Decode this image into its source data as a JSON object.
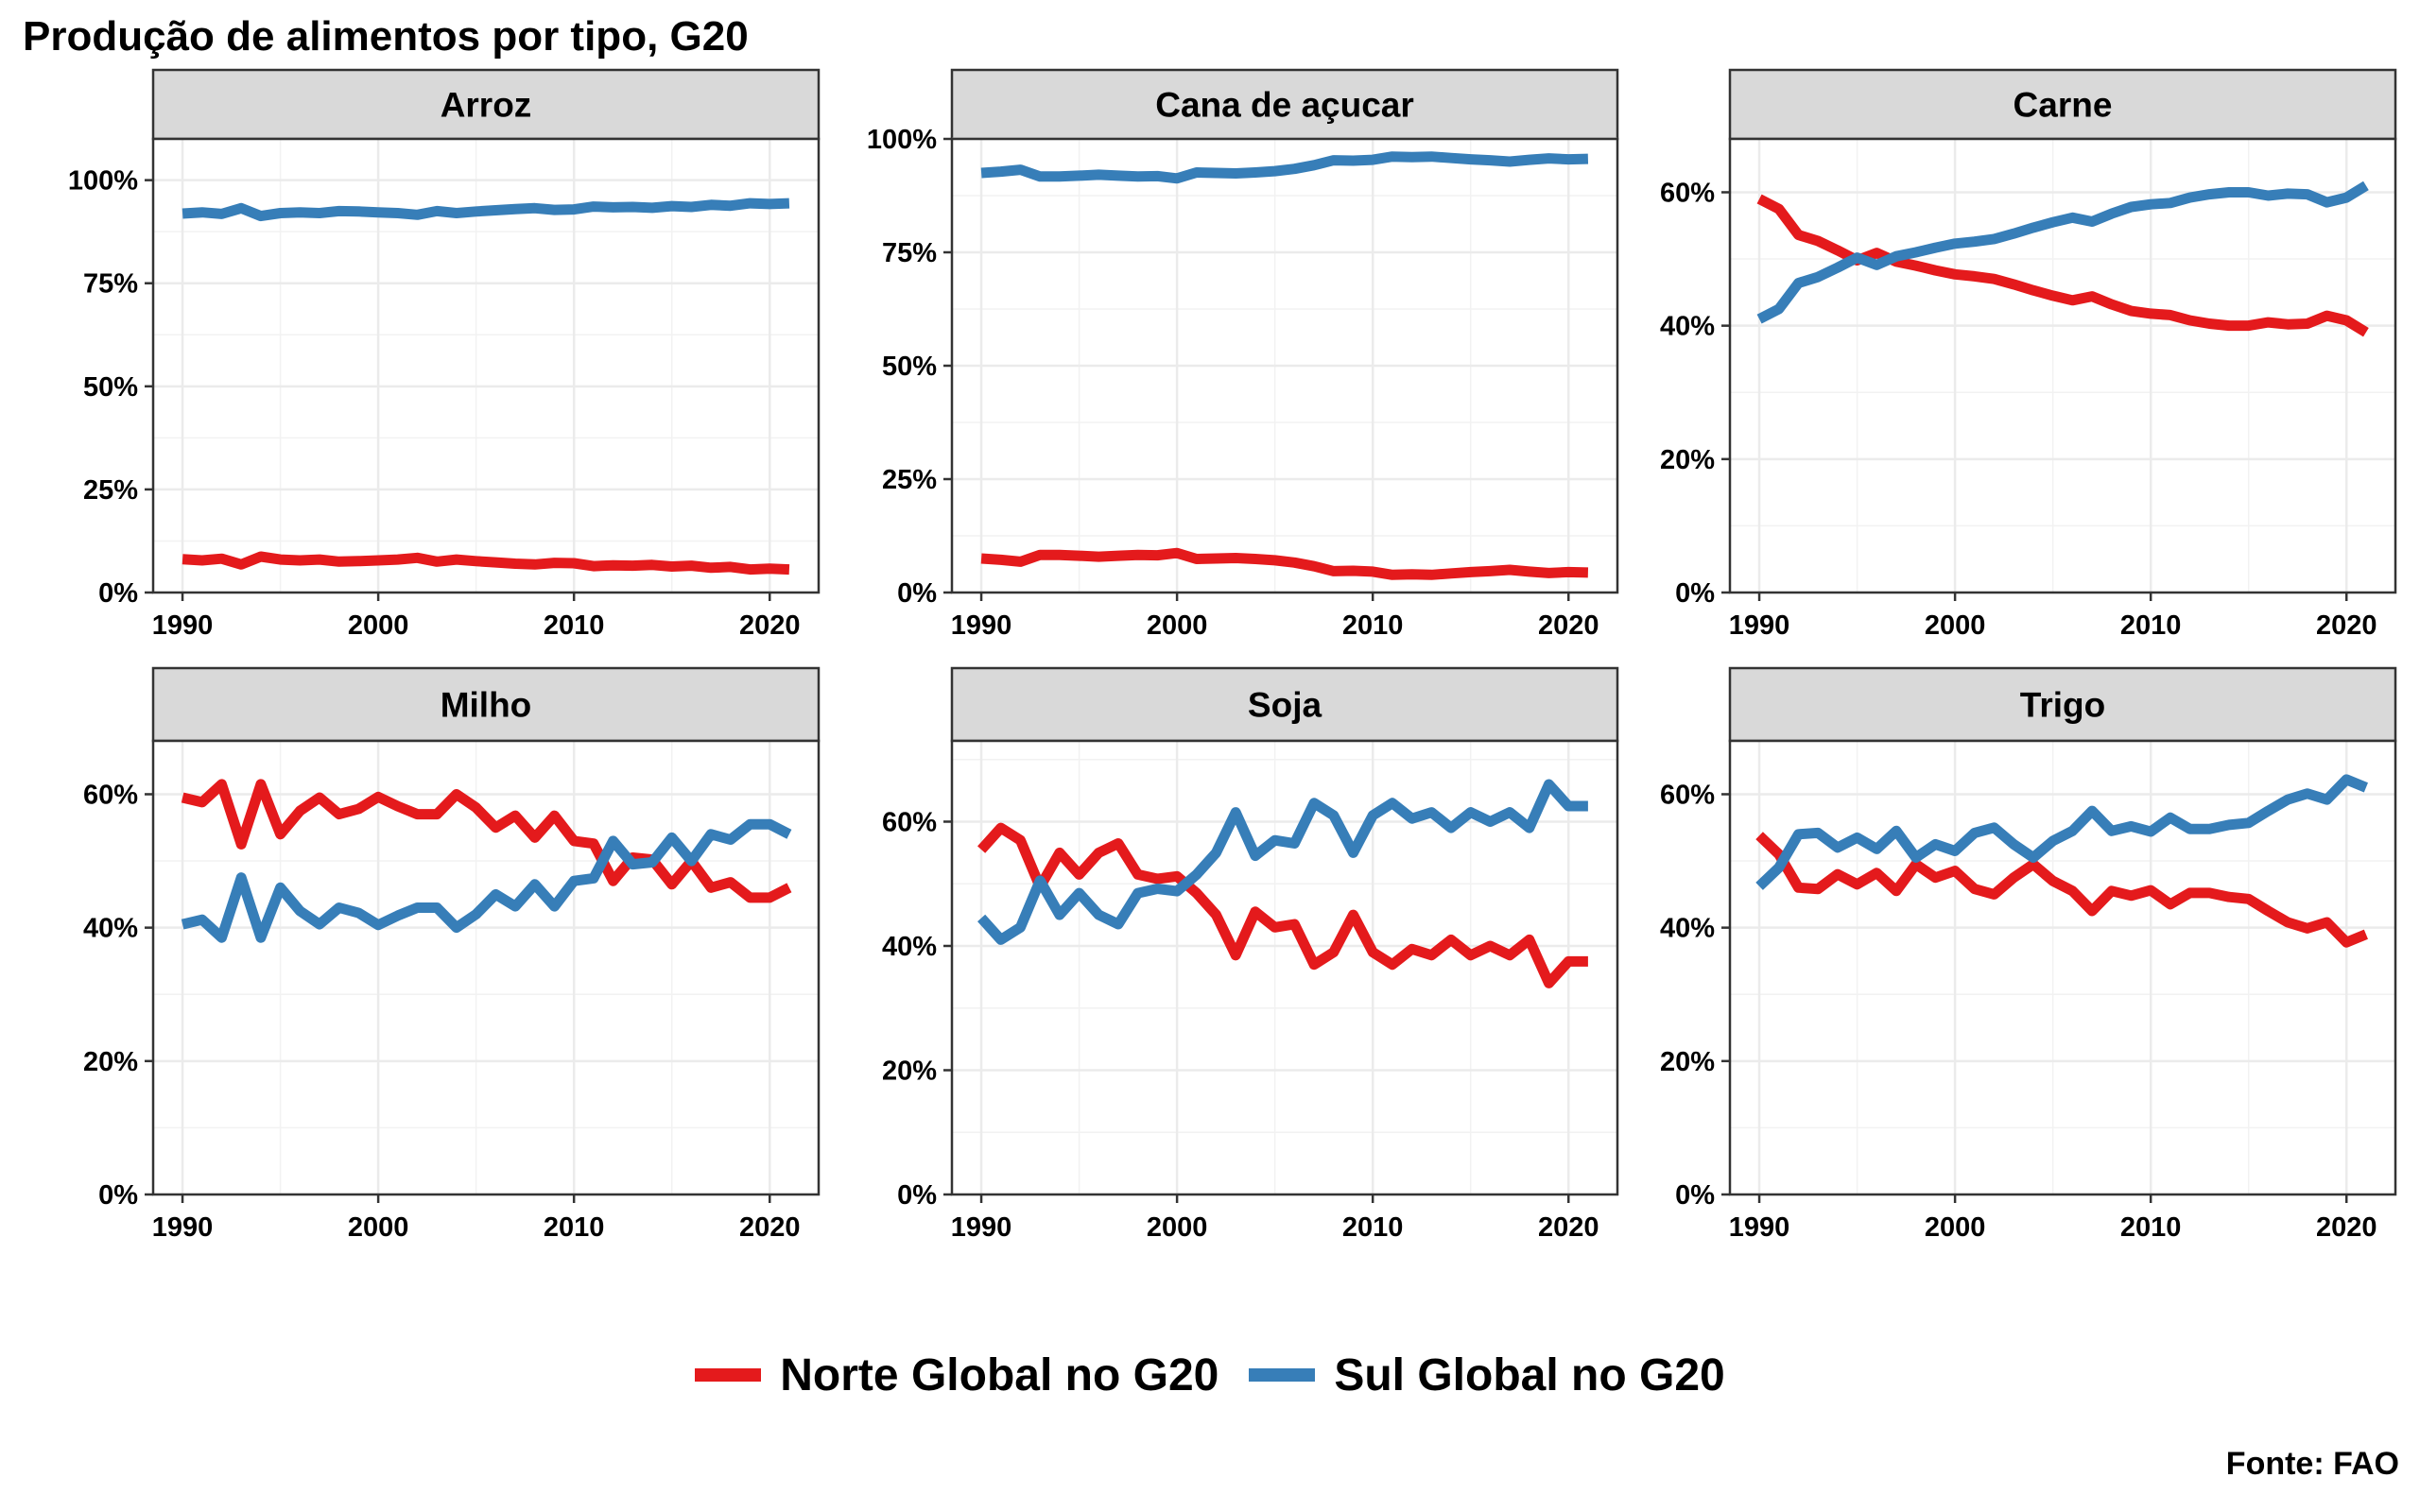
{
  "title": "Produção de alimentos por tipo, G20",
  "source": "Fonte: FAO",
  "colors": {
    "norte": "#e41a1c",
    "sul": "#377eb8",
    "strip_bg": "#d9d9d9",
    "grid": "#ebebeb"
  },
  "legend": [
    {
      "name": "Norte Global no G20",
      "color": "#e41a1c"
    },
    {
      "name": "Sul Global no G20",
      "color": "#377eb8"
    }
  ],
  "chart_data": [
    {
      "type": "line",
      "title": "Arroz",
      "ylim": [
        0,
        110
      ],
      "yticks": [
        0,
        25,
        50,
        75,
        100
      ],
      "ytick_labels": [
        "0%",
        "25%",
        "50%",
        "75%",
        "100%"
      ],
      "xlim": [
        1988.5,
        2022.5
      ],
      "xticks": [
        1990,
        2000,
        2010,
        2020
      ],
      "x": [
        1990,
        1991,
        1992,
        1993,
        1994,
        1995,
        1996,
        1997,
        1998,
        1999,
        2000,
        2001,
        2002,
        2003,
        2004,
        2005,
        2006,
        2007,
        2008,
        2009,
        2010,
        2011,
        2012,
        2013,
        2014,
        2015,
        2016,
        2017,
        2018,
        2019,
        2020,
        2021
      ],
      "series": [
        {
          "name": "Norte Global no G20",
          "values": [
            8.1,
            7.8,
            8.2,
            6.8,
            8.7,
            8.0,
            7.8,
            8.0,
            7.5,
            7.6,
            7.8,
            8.0,
            8.4,
            7.5,
            8.0,
            7.6,
            7.3,
            7.0,
            6.8,
            7.2,
            7.1,
            6.4,
            6.6,
            6.5,
            6.7,
            6.3,
            6.5,
            6.0,
            6.2,
            5.6,
            5.8,
            5.6
          ]
        },
        {
          "name": "Sul Global no G20",
          "values": [
            91.9,
            92.2,
            91.8,
            93.2,
            91.3,
            92.0,
            92.2,
            92.0,
            92.5,
            92.4,
            92.2,
            92.0,
            91.6,
            92.5,
            92.0,
            92.4,
            92.7,
            93.0,
            93.2,
            92.8,
            92.9,
            93.6,
            93.4,
            93.5,
            93.3,
            93.7,
            93.5,
            94.0,
            93.8,
            94.4,
            94.2,
            94.4
          ]
        }
      ]
    },
    {
      "type": "line",
      "title": "Cana de açucar",
      "ylim": [
        0,
        100
      ],
      "yticks": [
        0,
        25,
        50,
        75,
        100
      ],
      "ytick_labels": [
        "0%",
        "25%",
        "50%",
        "75%",
        "100%"
      ],
      "xlim": [
        1988.5,
        2022.5
      ],
      "xticks": [
        1990,
        2000,
        2010,
        2020
      ],
      "x": [
        1990,
        1991,
        1992,
        1993,
        1994,
        1995,
        1996,
        1997,
        1998,
        1999,
        2000,
        2001,
        2002,
        2003,
        2004,
        2005,
        2006,
        2007,
        2008,
        2009,
        2010,
        2011,
        2012,
        2013,
        2014,
        2015,
        2016,
        2017,
        2018,
        2019,
        2020,
        2021
      ],
      "series": [
        {
          "name": "Norte Global no G20",
          "values": [
            7.5,
            7.2,
            6.8,
            8.3,
            8.3,
            8.1,
            7.9,
            8.1,
            8.3,
            8.2,
            8.7,
            7.4,
            7.5,
            7.6,
            7.4,
            7.1,
            6.6,
            5.8,
            4.7,
            4.8,
            4.6,
            3.9,
            4.0,
            3.9,
            4.2,
            4.5,
            4.7,
            5.0,
            4.6,
            4.3,
            4.5,
            4.4
          ]
        },
        {
          "name": "Sul Global no G20",
          "values": [
            92.5,
            92.8,
            93.2,
            91.7,
            91.7,
            91.9,
            92.1,
            91.9,
            91.7,
            91.8,
            91.3,
            92.6,
            92.5,
            92.4,
            92.6,
            92.9,
            93.4,
            94.2,
            95.3,
            95.2,
            95.4,
            96.1,
            96.0,
            96.1,
            95.8,
            95.5,
            95.3,
            95.0,
            95.4,
            95.7,
            95.5,
            95.6
          ]
        }
      ]
    },
    {
      "type": "line",
      "title": "Carne",
      "ylim": [
        0,
        68
      ],
      "yticks": [
        0,
        20,
        40,
        60
      ],
      "ytick_labels": [
        "0%",
        "20%",
        "40%",
        "60%"
      ],
      "xlim": [
        1988.5,
        2022.5
      ],
      "xticks": [
        1990,
        2000,
        2010,
        2020
      ],
      "x": [
        1990,
        1991,
        1992,
        1993,
        1994,
        1995,
        1996,
        1997,
        1998,
        1999,
        2000,
        2001,
        2002,
        2003,
        2004,
        2005,
        2006,
        2007,
        2008,
        2009,
        2010,
        2011,
        2012,
        2013,
        2014,
        2015,
        2016,
        2017,
        2018,
        2019,
        2020,
        2021
      ],
      "series": [
        {
          "name": "Norte Global no G20",
          "values": [
            59.0,
            57.5,
            53.6,
            52.7,
            51.3,
            49.8,
            50.9,
            49.6,
            49.0,
            48.3,
            47.7,
            47.4,
            47.0,
            46.2,
            45.3,
            44.5,
            43.8,
            44.4,
            43.2,
            42.2,
            41.8,
            41.6,
            40.8,
            40.3,
            40.0,
            40.0,
            40.5,
            40.2,
            40.3,
            41.5,
            40.8,
            39.0
          ]
        },
        {
          "name": "Sul Global no G20",
          "values": [
            41.0,
            42.5,
            46.4,
            47.3,
            48.7,
            50.2,
            49.1,
            50.4,
            51.0,
            51.7,
            52.3,
            52.6,
            53.0,
            53.8,
            54.7,
            55.5,
            56.2,
            55.6,
            56.8,
            57.8,
            58.2,
            58.4,
            59.2,
            59.7,
            60.0,
            60.0,
            59.5,
            59.8,
            59.7,
            58.5,
            59.2,
            61.0
          ]
        }
      ]
    },
    {
      "type": "line",
      "title": "Milho",
      "ylim": [
        0,
        68
      ],
      "yticks": [
        0,
        20,
        40,
        60
      ],
      "ytick_labels": [
        "0%",
        "20%",
        "40%",
        "60%"
      ],
      "xlim": [
        1988.5,
        2022.5
      ],
      "xticks": [
        1990,
        2000,
        2010,
        2020
      ],
      "x": [
        1990,
        1991,
        1992,
        1993,
        1994,
        1995,
        1996,
        1997,
        1998,
        1999,
        2000,
        2001,
        2002,
        2003,
        2004,
        2005,
        2006,
        2007,
        2008,
        2009,
        2010,
        2011,
        2012,
        2013,
        2014,
        2015,
        2016,
        2017,
        2018,
        2019,
        2020,
        2021
      ],
      "series": [
        {
          "name": "Norte Global no G20",
          "values": [
            59.5,
            58.8,
            61.5,
            52.5,
            61.5,
            54.0,
            57.5,
            59.5,
            57.0,
            57.8,
            59.6,
            58.2,
            57.0,
            57.0,
            60.0,
            58.0,
            55.0,
            56.8,
            53.5,
            56.8,
            53.0,
            52.6,
            47.0,
            50.5,
            50.2,
            46.5,
            50.0,
            46.0,
            46.8,
            44.5,
            44.5,
            46.0
          ]
        },
        {
          "name": "Sul Global no G20",
          "values": [
            40.5,
            41.2,
            38.5,
            47.5,
            38.5,
            46.0,
            42.5,
            40.5,
            43.0,
            42.2,
            40.4,
            41.8,
            43.0,
            43.0,
            40.0,
            42.0,
            45.0,
            43.2,
            46.5,
            43.2,
            47.0,
            47.4,
            53.0,
            49.5,
            49.8,
            53.5,
            50.0,
            54.0,
            53.2,
            55.5,
            55.5,
            54.0
          ]
        }
      ]
    },
    {
      "type": "line",
      "title": "Soja",
      "ylim": [
        0,
        73
      ],
      "yticks": [
        0,
        20,
        40,
        60
      ],
      "ytick_labels": [
        "0%",
        "20%",
        "40%",
        "60%"
      ],
      "xlim": [
        1988.5,
        2022.5
      ],
      "xticks": [
        1990,
        2000,
        2010,
        2020
      ],
      "x": [
        1990,
        1991,
        1992,
        1993,
        1994,
        1995,
        1996,
        1997,
        1998,
        1999,
        2000,
        2001,
        2002,
        2003,
        2004,
        2005,
        2006,
        2007,
        2008,
        2009,
        2010,
        2011,
        2012,
        2013,
        2014,
        2015,
        2016,
        2017,
        2018,
        2019,
        2020,
        2021
      ],
      "series": [
        {
          "name": "Norte Global no G20",
          "values": [
            55.5,
            59.0,
            57.0,
            49.5,
            55.0,
            51.5,
            55.0,
            56.5,
            51.5,
            50.8,
            51.2,
            48.5,
            45.0,
            38.5,
            45.5,
            43.0,
            43.5,
            37.0,
            39.0,
            45.0,
            39.0,
            37.0,
            39.5,
            38.5,
            41.0,
            38.5,
            40.0,
            38.5,
            41.0,
            34.0,
            37.5,
            37.5
          ]
        },
        {
          "name": "Sul Global no G20",
          "values": [
            44.5,
            41.0,
            43.0,
            50.5,
            45.0,
            48.5,
            45.0,
            43.5,
            48.5,
            49.2,
            48.8,
            51.5,
            55.0,
            61.5,
            54.5,
            57.0,
            56.5,
            63.0,
            61.0,
            55.0,
            61.0,
            63.0,
            60.5,
            61.5,
            59.0,
            61.5,
            60.0,
            61.5,
            59.0,
            66.0,
            62.5,
            62.5
          ]
        }
      ]
    },
    {
      "type": "line",
      "title": "Trigo",
      "ylim": [
        0,
        68
      ],
      "yticks": [
        0,
        20,
        40,
        60
      ],
      "ytick_labels": [
        "0%",
        "20%",
        "40%",
        "60%"
      ],
      "xlim": [
        1988.5,
        2022.5
      ],
      "xticks": [
        1990,
        2000,
        2010,
        2020
      ],
      "x": [
        1990,
        1991,
        1992,
        1993,
        1994,
        1995,
        1996,
        1997,
        1998,
        1999,
        2000,
        2001,
        2002,
        2003,
        2004,
        2005,
        2006,
        2007,
        2008,
        2009,
        2010,
        2011,
        2012,
        2013,
        2014,
        2015,
        2016,
        2017,
        2018,
        2019,
        2020,
        2021
      ],
      "series": [
        {
          "name": "Norte Global no G20",
          "values": [
            53.8,
            51.0,
            46.0,
            45.8,
            48.0,
            46.5,
            48.2,
            45.5,
            49.5,
            47.5,
            48.5,
            45.8,
            45.0,
            47.5,
            49.5,
            47.0,
            45.5,
            42.5,
            45.5,
            44.8,
            45.6,
            43.5,
            45.2,
            45.2,
            44.6,
            44.3,
            42.5,
            40.8,
            39.9,
            40.8,
            37.8,
            39.0
          ]
        },
        {
          "name": "Sul Global no G20",
          "values": [
            46.2,
            49.0,
            54.0,
            54.2,
            52.0,
            53.5,
            51.8,
            54.5,
            50.5,
            52.5,
            51.5,
            54.2,
            55.0,
            52.5,
            50.5,
            53.0,
            54.5,
            57.5,
            54.5,
            55.2,
            54.4,
            56.5,
            54.8,
            54.8,
            55.4,
            55.7,
            57.5,
            59.2,
            60.1,
            59.2,
            62.2,
            61.0
          ]
        }
      ]
    }
  ]
}
